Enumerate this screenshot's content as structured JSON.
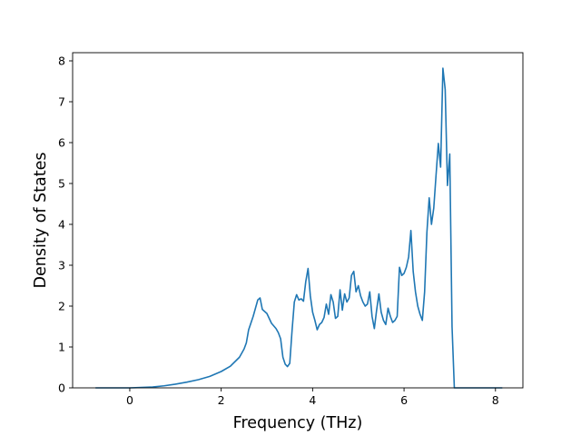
{
  "chart_data": {
    "type": "line",
    "xlabel": "Frequency (THz)",
    "ylabel": "Density of States",
    "xlim": [
      -1.25,
      8.6
    ],
    "ylim": [
      0,
      8.2
    ],
    "xticks": [
      0,
      2,
      4,
      6,
      8
    ],
    "yticks": [
      0,
      1,
      2,
      3,
      4,
      5,
      6,
      7,
      8
    ],
    "grid": false,
    "line_color": "#1f77b4",
    "series": [
      {
        "x": [
          -0.75,
          -0.5,
          -0.25,
          0,
          0.25,
          0.5,
          0.75,
          1.0,
          1.25,
          1.5,
          1.75,
          2.0,
          2.2,
          2.4,
          2.5,
          2.55,
          2.6,
          2.7,
          2.75,
          2.8,
          2.85,
          2.9,
          3.0,
          3.05,
          3.1,
          3.2,
          3.25,
          3.3,
          3.35,
          3.4,
          3.45,
          3.5,
          3.55,
          3.6,
          3.65,
          3.7,
          3.75,
          3.8,
          3.85,
          3.9,
          3.95,
          4.0,
          4.05,
          4.1,
          4.15,
          4.2,
          4.25,
          4.3,
          4.35,
          4.4,
          4.45,
          4.5,
          4.55,
          4.6,
          4.65,
          4.7,
          4.75,
          4.8,
          4.85,
          4.9,
          4.95,
          5.0,
          5.05,
          5.1,
          5.15,
          5.2,
          5.25,
          5.3,
          5.35,
          5.4,
          5.45,
          5.5,
          5.55,
          5.6,
          5.65,
          5.7,
          5.75,
          5.8,
          5.85,
          5.9,
          5.95,
          6.0,
          6.05,
          6.1,
          6.15,
          6.2,
          6.25,
          6.3,
          6.35,
          6.4,
          6.45,
          6.5,
          6.55,
          6.6,
          6.65,
          6.7,
          6.75,
          6.8,
          6.85,
          6.9,
          6.95,
          7.0,
          7.05,
          7.1,
          7.13,
          7.16,
          7.2,
          7.25,
          7.3,
          7.33,
          7.36,
          7.4,
          7.45,
          7.5,
          7.6,
          7.8,
          8.0,
          8.15
        ],
        "y": [
          0,
          0,
          0,
          0,
          0.01,
          0.02,
          0.05,
          0.09,
          0.14,
          0.2,
          0.28,
          0.4,
          0.53,
          0.75,
          0.95,
          1.1,
          1.42,
          1.75,
          1.95,
          2.15,
          2.2,
          1.92,
          1.82,
          1.7,
          1.58,
          1.45,
          1.35,
          1.2,
          0.75,
          0.58,
          0.52,
          0.6,
          1.4,
          2.1,
          2.28,
          2.15,
          2.18,
          2.12,
          2.6,
          2.92,
          2.25,
          1.85,
          1.65,
          1.42,
          1.55,
          1.6,
          1.72,
          2.05,
          1.8,
          2.28,
          2.1,
          1.7,
          1.75,
          2.4,
          1.9,
          2.3,
          2.1,
          2.2,
          2.75,
          2.85,
          2.35,
          2.5,
          2.25,
          2.1,
          2.0,
          2.05,
          2.35,
          1.75,
          1.45,
          1.9,
          2.3,
          1.85,
          1.65,
          1.55,
          1.95,
          1.75,
          1.6,
          1.65,
          1.75,
          2.95,
          2.75,
          2.8,
          2.95,
          3.2,
          3.85,
          2.85,
          2.35,
          2.0,
          1.8,
          1.65,
          2.35,
          3.8,
          4.65,
          4.0,
          4.4,
          5.2,
          5.98,
          5.4,
          7.82,
          7.3,
          4.95,
          5.72,
          1.5,
          0,
          0,
          0,
          0,
          0,
          0,
          0,
          0,
          0,
          0,
          0,
          0,
          0,
          0,
          0
        ]
      }
    ]
  }
}
